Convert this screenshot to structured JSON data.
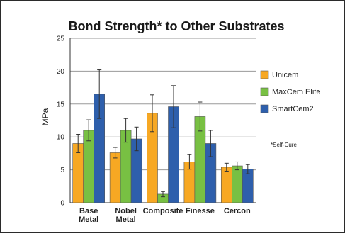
{
  "chart_data": {
    "type": "bar",
    "title": "Bond Strength* to Other Substrates",
    "ylabel": "MPa",
    "xlabel": "",
    "ylim": [
      0,
      25
    ],
    "yticks": [
      "0",
      "5",
      "10",
      "15",
      "20",
      "25"
    ],
    "grid": true,
    "legend_position": "right",
    "categories": [
      [
        "Base",
        "Metal"
      ],
      [
        "Nobel",
        "Metal"
      ],
      [
        "Composite"
      ],
      [
        "Finesse"
      ],
      [
        "Cercon"
      ]
    ],
    "series": [
      {
        "name": "Unicem",
        "color": "#f7a823",
        "values": [
          9.0,
          7.6,
          13.6,
          6.2,
          5.4
        ],
        "errors": [
          1.4,
          0.8,
          2.8,
          1.1,
          0.6
        ]
      },
      {
        "name": "MaxCem Elite",
        "color": "#78c043",
        "values": [
          11.0,
          11.0,
          1.3,
          13.1,
          5.6
        ],
        "errors": [
          1.6,
          1.8,
          0.4,
          2.2,
          0.6
        ]
      },
      {
        "name": "SmartCem2",
        "color": "#2e5fac",
        "values": [
          16.5,
          9.7,
          14.6,
          9.0,
          5.1
        ],
        "errors": [
          3.7,
          1.8,
          3.2,
          2.0,
          0.7
        ]
      }
    ],
    "footnote": "*Self-Cure"
  }
}
